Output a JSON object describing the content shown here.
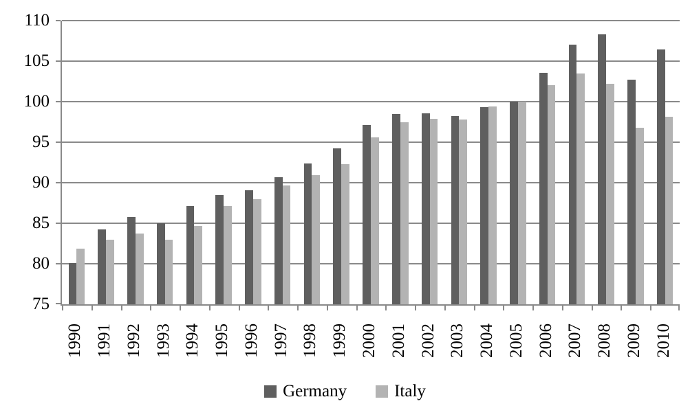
{
  "chart_data": {
    "type": "bar",
    "title": "",
    "xlabel": "",
    "ylabel": "",
    "categories": [
      "1990",
      "1991",
      "1992",
      "1993",
      "1994",
      "1995",
      "1996",
      "1997",
      "1998",
      "1999",
      "2000",
      "2001",
      "2002",
      "2003",
      "2004",
      "2005",
      "2006",
      "2007",
      "2008",
      "2009",
      "2010"
    ],
    "series": [
      {
        "name": "Germany",
        "color": "#5f5f5f",
        "values": [
          80.1,
          84.2,
          85.8,
          85.0,
          87.1,
          88.5,
          89.1,
          90.7,
          92.4,
          94.2,
          97.1,
          98.5,
          98.6,
          98.2,
          99.3,
          100.0,
          103.6,
          107.0,
          108.3,
          102.7,
          106.4
        ]
      },
      {
        "name": "Italy",
        "color": "#b3b3b3",
        "values": [
          81.9,
          83.0,
          83.7,
          83.0,
          84.7,
          87.1,
          88.0,
          89.7,
          90.9,
          92.3,
          95.6,
          97.5,
          97.9,
          97.8,
          99.4,
          100.0,
          102.0,
          103.5,
          102.2,
          96.8,
          98.1
        ]
      }
    ],
    "ylim": [
      75,
      110
    ],
    "yticks": [
      75,
      80,
      85,
      90,
      95,
      100,
      105,
      110
    ],
    "grid": true,
    "gridline_color": "#898989",
    "axis_color": "#898989",
    "legend_position": "bottom"
  }
}
